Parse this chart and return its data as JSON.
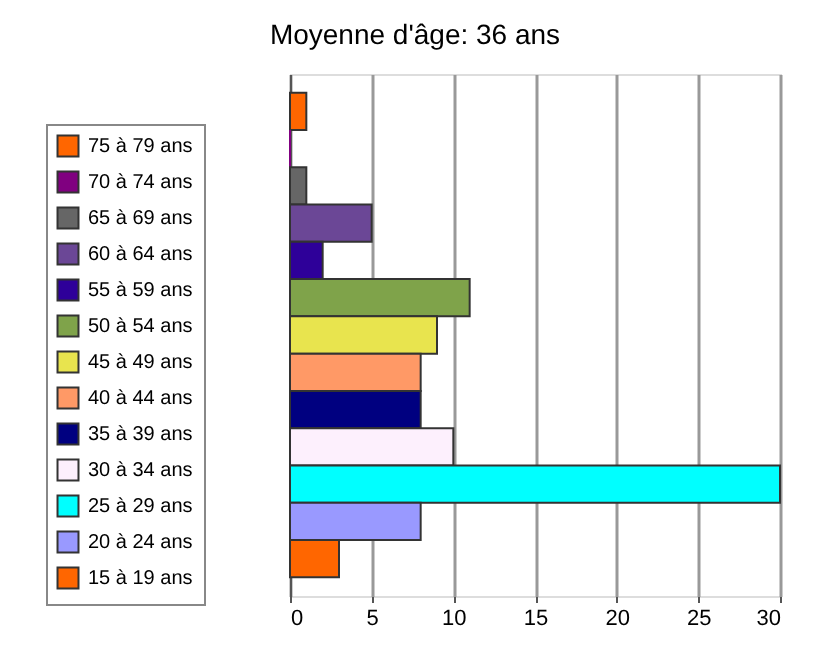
{
  "chart_data": {
    "type": "bar",
    "orientation": "horizontal",
    "title": "Moyenne d'âge: 36 ans",
    "categories": [
      null
    ],
    "series": [
      {
        "name": "75 à 79 ans",
        "color": "#ff6600",
        "values": [
          1
        ]
      },
      {
        "name": "70 à 74 ans",
        "color": "#800080",
        "values": [
          0
        ]
      },
      {
        "name": "65 à 69 ans",
        "color": "#666666",
        "values": [
          1
        ]
      },
      {
        "name": "60 à 64 ans",
        "color": "#6b4796",
        "values": [
          5
        ]
      },
      {
        "name": "55 à 59 ans",
        "color": "#2e0099",
        "values": [
          2
        ]
      },
      {
        "name": "50 à 54 ans",
        "color": "#7fa34a",
        "values": [
          11
        ]
      },
      {
        "name": "45 à 49 ans",
        "color": "#e8e44e",
        "values": [
          9
        ]
      },
      {
        "name": "40 à 44 ans",
        "color": "#ff9966",
        "values": [
          8
        ]
      },
      {
        "name": "35 à 39 ans",
        "color": "#000080",
        "values": [
          8
        ]
      },
      {
        "name": "30 à 34 ans",
        "color": "#fdf0fd",
        "values": [
          10
        ]
      },
      {
        "name": "25 à 29 ans",
        "color": "#00ffff",
        "values": [
          30
        ]
      },
      {
        "name": "20 à 24 ans",
        "color": "#9999ff",
        "values": [
          8
        ]
      },
      {
        "name": "15 à 19 ans",
        "color": "#ff6600",
        "values": [
          3
        ]
      }
    ],
    "xlim": [
      0,
      30
    ],
    "xticks": [
      0,
      5,
      10,
      15,
      20,
      25,
      30
    ],
    "grid": "x",
    "legend": "left",
    "tick_labels": "x"
  }
}
